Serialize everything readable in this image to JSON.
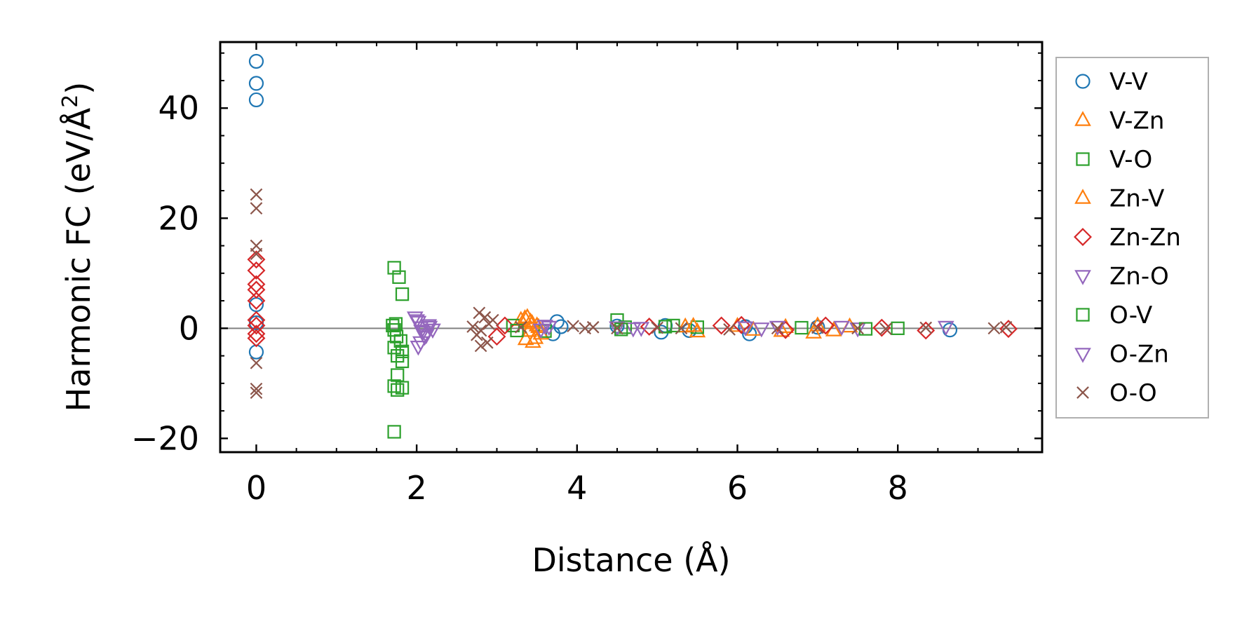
{
  "chart_data": {
    "type": "scatter",
    "xlabel": "Distance (Å)",
    "ylabel": {
      "prefix": "Harmonic FC (eV/Å",
      "superscript": "2",
      "suffix": ")"
    },
    "xlim": [
      -0.45,
      9.8
    ],
    "ylim": [
      -22.5,
      52
    ],
    "xticks": [
      0,
      2,
      4,
      6,
      8
    ],
    "yticks": [
      -20,
      0,
      20,
      40
    ],
    "xtick_labels": [
      "0",
      "2",
      "4",
      "6",
      "8"
    ],
    "ytick_labels": [
      "−20",
      "0",
      "20",
      "40"
    ],
    "grid": false,
    "zero_line": true,
    "legend_position": "outside-right",
    "series": [
      {
        "name": "V-V",
        "marker": "circle",
        "color": "#1f77b4",
        "points": [
          [
            0,
            48.5
          ],
          [
            0,
            44.5
          ],
          [
            0,
            41.5
          ],
          [
            0,
            -4.3
          ],
          [
            0,
            4.3
          ],
          [
            0,
            1
          ],
          [
            3.75,
            1.2
          ],
          [
            3.7,
            -1
          ],
          [
            3.8,
            0.3
          ],
          [
            5.05,
            -0.7
          ],
          [
            5.1,
            0.5
          ],
          [
            6.15,
            -1
          ],
          [
            6.1,
            0.3
          ],
          [
            7.0,
            0.2
          ],
          [
            8.65,
            -0.3
          ],
          [
            4.5,
            0.4
          ],
          [
            5.4,
            -0.4
          ]
        ]
      },
      {
        "name": "V-Zn",
        "marker": "triangle-up",
        "color": "#ff7f0e",
        "points": [
          [
            3.38,
            2
          ],
          [
            3.42,
            1.2
          ],
          [
            3.45,
            -2.5
          ],
          [
            3.4,
            -0.5
          ],
          [
            3.5,
            0.5
          ],
          [
            3.3,
            1.5
          ],
          [
            3.55,
            -1
          ],
          [
            3.36,
            -2
          ],
          [
            5.35,
            0.3
          ],
          [
            5.5,
            -0.6
          ],
          [
            6.0,
            0.4
          ],
          [
            6.55,
            -0.5
          ],
          [
            6.95,
            -0.8
          ],
          [
            7.4,
            0.3
          ],
          [
            7.0,
            0.5
          ]
        ]
      },
      {
        "name": "V-O",
        "marker": "square",
        "color": "#2ca02c",
        "points": [
          [
            1.72,
            11
          ],
          [
            1.78,
            9.3
          ],
          [
            1.82,
            6.2
          ],
          [
            1.7,
            0.5
          ],
          [
            1.72,
            -0.3
          ],
          [
            1.75,
            -1.5
          ],
          [
            1.72,
            -3.5
          ],
          [
            1.82,
            -4.2
          ],
          [
            1.82,
            -6
          ],
          [
            1.76,
            -8.5
          ],
          [
            1.72,
            -10.5
          ],
          [
            1.82,
            -10.8
          ],
          [
            1.72,
            -18.8
          ],
          [
            1.76,
            -11.2
          ],
          [
            3.2,
            0.5
          ],
          [
            3.6,
            -0.5
          ],
          [
            4.5,
            1.5
          ],
          [
            4.6,
            0.2
          ],
          [
            5.2,
            0.5
          ],
          [
            5.5,
            0.2
          ],
          [
            8.0,
            0
          ]
        ]
      },
      {
        "name": "Zn-V",
        "marker": "triangle-up",
        "color": "#ff7f0e",
        "points": [
          [
            3.35,
            1.8
          ],
          [
            3.44,
            0.9
          ],
          [
            3.48,
            -1.8
          ],
          [
            3.52,
            0.2
          ],
          [
            5.45,
            0.4
          ],
          [
            6.2,
            -0.3
          ],
          [
            6.6,
            0.2
          ],
          [
            7.2,
            -0.4
          ]
        ]
      },
      {
        "name": "Zn-Zn",
        "marker": "diamond",
        "color": "#d62728",
        "points": [
          [
            0,
            12.5
          ],
          [
            0,
            10.5
          ],
          [
            0,
            8
          ],
          [
            0,
            7
          ],
          [
            0,
            5
          ],
          [
            0,
            1.5
          ],
          [
            0,
            0.5
          ],
          [
            0,
            -1
          ],
          [
            0,
            -1.8
          ],
          [
            3.0,
            -1.5
          ],
          [
            3.1,
            0.5
          ],
          [
            4.9,
            0.3
          ],
          [
            5.8,
            0.5
          ],
          [
            6.05,
            0.6
          ],
          [
            6.6,
            -0.3
          ],
          [
            7.1,
            0.5
          ],
          [
            7.8,
            0.1
          ],
          [
            8.35,
            -0.4
          ],
          [
            9.38,
            -0.1
          ]
        ]
      },
      {
        "name": "Zn-O",
        "marker": "triangle-down",
        "color": "#9467bd",
        "points": [
          [
            1.98,
            2
          ],
          [
            2.02,
            1.2
          ],
          [
            2.05,
            0.2
          ],
          [
            2.08,
            -0.6
          ],
          [
            2.1,
            -1.5
          ],
          [
            2.05,
            -2.5
          ],
          [
            2.02,
            -3.3
          ],
          [
            2.15,
            0.6
          ],
          [
            2.2,
            -0.2
          ],
          [
            3.55,
            -0.2
          ],
          [
            3.6,
            0.5
          ],
          [
            4.5,
            0.2
          ],
          [
            4.7,
            0
          ],
          [
            6.1,
            0.2
          ],
          [
            6.5,
            0.3
          ],
          [
            7.5,
            0
          ],
          [
            8.6,
            0.3
          ]
        ]
      },
      {
        "name": "O-V",
        "marker": "square",
        "color": "#2ca02c",
        "points": [
          [
            1.74,
            0.8
          ],
          [
            1.8,
            -2.3
          ],
          [
            1.76,
            -5
          ],
          [
            3.25,
            -0.4
          ],
          [
            4.55,
            -0.2
          ],
          [
            5.1,
            0.3
          ],
          [
            6.8,
            0.1
          ],
          [
            7.6,
            -0.1
          ]
        ]
      },
      {
        "name": "O-Zn",
        "marker": "triangle-down",
        "color": "#9467bd",
        "points": [
          [
            2.0,
            1.5
          ],
          [
            2.06,
            -0.4
          ],
          [
            2.12,
            -1.2
          ],
          [
            2.16,
            0.3
          ],
          [
            3.65,
            0.3
          ],
          [
            4.8,
            0.1
          ],
          [
            6.3,
            0
          ],
          [
            7.3,
            0.3
          ]
        ]
      },
      {
        "name": "O-O",
        "marker": "x",
        "color": "#8c564b",
        "points": [
          [
            0,
            24.3
          ],
          [
            0,
            21.8
          ],
          [
            0,
            15
          ],
          [
            0,
            13.5
          ],
          [
            0,
            -6.3
          ],
          [
            0,
            -11
          ],
          [
            0,
            -11.7
          ],
          [
            2.78,
            2.8
          ],
          [
            2.85,
            2
          ],
          [
            2.9,
            0.8
          ],
          [
            2.8,
            -0.4
          ],
          [
            2.75,
            -1.2
          ],
          [
            2.88,
            -2.6
          ],
          [
            2.8,
            -3.2
          ],
          [
            2.95,
            1.5
          ],
          [
            2.7,
            0.3
          ],
          [
            3.3,
            0.2
          ],
          [
            3.95,
            0.4
          ],
          [
            4.1,
            0
          ],
          [
            4.2,
            0.2
          ],
          [
            4.5,
            0
          ],
          [
            5.0,
            0.1
          ],
          [
            5.3,
            0
          ],
          [
            5.9,
            -0.2
          ],
          [
            6.5,
            0
          ],
          [
            7.0,
            0.1
          ],
          [
            7.5,
            0
          ],
          [
            7.85,
            -0.1
          ],
          [
            8.35,
            0.1
          ],
          [
            9.2,
            0
          ],
          [
            9.35,
            0.2
          ]
        ]
      }
    ]
  }
}
